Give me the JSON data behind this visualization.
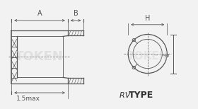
{
  "bg_color": "#f2f2f2",
  "line_color": "#555555",
  "dim_color": "#555555",
  "label_A": "A",
  "label_B": "B",
  "label_H": "H",
  "label_15max": "1.5max",
  "figsize": [
    2.8,
    1.54
  ],
  "dpi": 100,
  "title_rv": "RV ",
  "title_type": "TYPE"
}
